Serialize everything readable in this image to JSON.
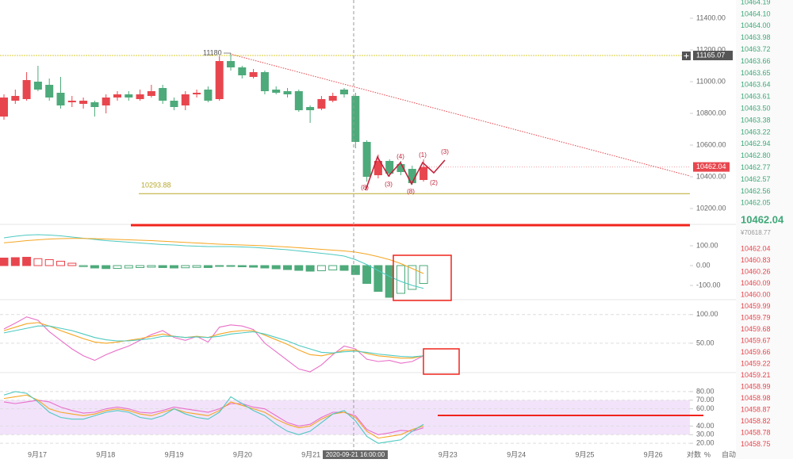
{
  "chart_data": [
    {
      "type": "candlestick",
      "open": [
        10780,
        10880,
        10890,
        11000,
        10980,
        10930,
        10870,
        10860,
        10870,
        10850,
        10900,
        10920,
        10890,
        10910,
        10960,
        10880,
        10850,
        10920,
        10950,
        10890,
        11130,
        11090,
        11030,
        11060,
        10950,
        10940,
        10940,
        10840,
        10830,
        10880,
        10950,
        10910,
        10620,
        10410,
        10500,
        10480,
        10450,
        10380
      ],
      "high": [
        10920,
        10950,
        11060,
        11100,
        11020,
        11030,
        10910,
        10900,
        10880,
        10920,
        10940,
        10940,
        10950,
        10980,
        10980,
        10900,
        10940,
        10950,
        10970,
        11160,
        11180,
        11100,
        11080,
        11070,
        10970,
        10960,
        10950,
        10850,
        10910,
        10930,
        10960,
        10930,
        10630,
        10540,
        10510,
        10500,
        10470,
        10510
      ],
      "low": [
        10760,
        10860,
        10880,
        10940,
        10880,
        10830,
        10840,
        10830,
        10780,
        10800,
        10880,
        10880,
        10880,
        10900,
        10860,
        10820,
        10820,
        10900,
        10870,
        10880,
        11070,
        11020,
        11020,
        10920,
        10920,
        10900,
        10810,
        10740,
        10820,
        10870,
        10900,
        10580,
        10370,
        10390,
        10400,
        10410,
        10350,
        10370
      ],
      "close": [
        10900,
        10910,
        11010,
        10950,
        10900,
        10850,
        10880,
        10880,
        10840,
        10900,
        10920,
        10900,
        10920,
        10940,
        10880,
        10840,
        10920,
        10930,
        10880,
        11130,
        11090,
        11040,
        11060,
        10940,
        10930,
        10920,
        10820,
        10820,
        10890,
        10910,
        10920,
        10620,
        10400,
        10500,
        10420,
        10430,
        10360,
        10462.04
      ],
      "up_color": "#e8464e",
      "down_color": "#4daa7a",
      "ylim": [
        10100,
        11515
      ],
      "yticks": [
        {
          "value": 11400,
          "label": "11400.00"
        },
        {
          "value": 11200,
          "label": "11200.00"
        },
        {
          "value": 11000,
          "label": "11000.00"
        },
        {
          "value": 10800,
          "label": "10800.00"
        },
        {
          "value": 10600,
          "label": "10600.00"
        },
        {
          "value": 10400,
          "label": "10400.00"
        },
        {
          "value": 10200,
          "label": "10200.00"
        }
      ],
      "max_marker": 11180,
      "resistance": 11165.07,
      "support": 10293.88,
      "last_price": 10462.04,
      "wave_labels": [
        "(8)",
        "(3)",
        "(4)",
        "(8)",
        "(1)",
        "(2)",
        "(3)"
      ]
    },
    {
      "type": "macd",
      "values": [
        38,
        40,
        42,
        35,
        30,
        22,
        12,
        -5,
        -12,
        -15,
        -14,
        -12,
        -10,
        -8,
        -10,
        -12,
        -11,
        -9,
        -10,
        -4,
        -3,
        -6,
        -8,
        -12,
        -16,
        -20,
        -24,
        -28,
        -26,
        -22,
        -24,
        -45,
        -90,
        -130,
        -160,
        -140,
        -120,
        -90
      ],
      "series": [
        {
          "color": "#4ec9c0",
          "values": [
            140,
            148,
            154,
            156,
            154,
            150,
            144,
            138,
            132,
            126,
            122,
            118,
            114,
            110,
            106,
            104,
            100,
            98,
            96,
            96,
            96,
            94,
            92,
            88,
            84,
            80,
            74,
            68,
            62,
            56,
            48,
            30,
            5,
            -25,
            -55,
            -80,
            -100,
            -115
          ]
        },
        {
          "color": "#f5a623",
          "values": [
            115,
            120,
            126,
            130,
            134,
            136,
            137,
            137,
            136,
            134,
            132,
            130,
            128,
            126,
            123,
            120,
            117,
            114,
            111,
            108,
            106,
            104,
            102,
            100,
            97,
            94,
            90,
            86,
            82,
            78,
            74,
            68,
            58,
            45,
            30,
            10,
            -15,
            -40
          ]
        }
      ],
      "ylim": [
        -172,
        208
      ],
      "yticks": [
        {
          "value": 100,
          "label": "100.00"
        },
        {
          "value": 0,
          "label": "0.00"
        },
        {
          "value": -100,
          "label": "-100.00"
        }
      ]
    },
    {
      "type": "line",
      "series": [
        {
          "color": "#e970c8",
          "values": [
            75,
            85,
            96,
            90,
            70,
            55,
            40,
            28,
            20,
            30,
            38,
            45,
            55,
            65,
            72,
            60,
            55,
            62,
            52,
            78,
            82,
            80,
            74,
            50,
            35,
            20,
            5,
            0,
            12,
            30,
            45,
            40,
            22,
            18,
            20,
            15,
            18,
            28
          ]
        },
        {
          "color": "#f5a623",
          "values": [
            72,
            78,
            84,
            86,
            80,
            72,
            65,
            58,
            52,
            50,
            52,
            55,
            58,
            62,
            66,
            62,
            60,
            62,
            60,
            66,
            70,
            72,
            72,
            64,
            56,
            48,
            38,
            30,
            28,
            32,
            38,
            38,
            32,
            28,
            26,
            24,
            24,
            28
          ]
        },
        {
          "color": "#4ec9c0",
          "values": [
            68,
            72,
            76,
            80,
            80,
            76,
            72,
            66,
            60,
            56,
            54,
            54,
            56,
            58,
            62,
            62,
            60,
            61,
            60,
            62,
            66,
            68,
            70,
            66,
            60,
            54,
            46,
            40,
            34,
            33,
            35,
            36,
            34,
            31,
            29,
            27,
            26,
            28
          ]
        }
      ],
      "ylim": [
        0,
        126
      ],
      "yticks": [
        {
          "value": 100,
          "label": "100.00"
        },
        {
          "value": 50,
          "label": "50.00"
        }
      ]
    },
    {
      "type": "line",
      "series": [
        {
          "color": "#e970c8",
          "values": [
            68,
            66,
            68,
            70,
            68,
            62,
            58,
            55,
            56,
            60,
            62,
            60,
            56,
            55,
            58,
            62,
            60,
            58,
            56,
            60,
            66,
            66,
            62,
            60,
            52,
            44,
            40,
            42,
            50,
            56,
            56,
            52,
            36,
            30,
            32,
            35,
            34,
            38
          ]
        },
        {
          "color": "#f5a623",
          "values": [
            72,
            74,
            76,
            70,
            60,
            56,
            54,
            52,
            54,
            58,
            60,
            58,
            54,
            52,
            56,
            60,
            56,
            54,
            52,
            58,
            68,
            64,
            60,
            56,
            48,
            42,
            38,
            40,
            48,
            54,
            56,
            50,
            34,
            26,
            28,
            30,
            36,
            40
          ]
        },
        {
          "color": "#4ec9c0",
          "values": [
            76,
            80,
            78,
            68,
            56,
            50,
            48,
            48,
            52,
            56,
            58,
            56,
            50,
            48,
            52,
            60,
            54,
            50,
            48,
            56,
            74,
            66,
            58,
            52,
            42,
            34,
            30,
            34,
            44,
            54,
            58,
            46,
            28,
            20,
            22,
            24,
            34,
            42
          ]
        }
      ],
      "band": [
        30,
        70
      ],
      "ylim": [
        10,
        102
      ],
      "yticks": [
        {
          "value": 80,
          "label": "80.00"
        },
        {
          "value": 70,
          "label": "70.00"
        },
        {
          "value": 60,
          "label": "60.00"
        },
        {
          "value": 40,
          "label": "40.00"
        },
        {
          "value": 30,
          "label": "30.00"
        },
        {
          "value": 20,
          "label": "20.00"
        }
      ]
    }
  ],
  "time_axis": {
    "labels": [
      "9月17",
      "9月18",
      "9月19",
      "9月20",
      "9月21",
      "9月23",
      "9月24",
      "9月25",
      "9月26"
    ],
    "crosshair_label": "2020-09-21 16:00:00",
    "scale_options": [
      "对数",
      "%",
      "自动"
    ]
  },
  "order_book": {
    "asks": [
      "10464.19",
      "10464.10",
      "10464.00",
      "10463.98",
      "10463.72",
      "10463.66",
      "10463.65",
      "10463.64",
      "10463.61",
      "10463.50",
      "10463.38",
      "10463.22",
      "10462.94",
      "10462.80",
      "10462.77",
      "10462.57",
      "10462.56",
      "10462.05"
    ],
    "last_price": "10462.04",
    "fiat_price": "¥70618.77",
    "bids": [
      "10462.04",
      "10460.83",
      "10460.26",
      "10460.09",
      "10460.00",
      "10459.99",
      "10459.79",
      "10459.68",
      "10459.67",
      "10459.66",
      "10459.22",
      "10459.21",
      "10458.99",
      "10458.98",
      "10458.87",
      "10458.82",
      "10458.78",
      "10458.75"
    ]
  }
}
